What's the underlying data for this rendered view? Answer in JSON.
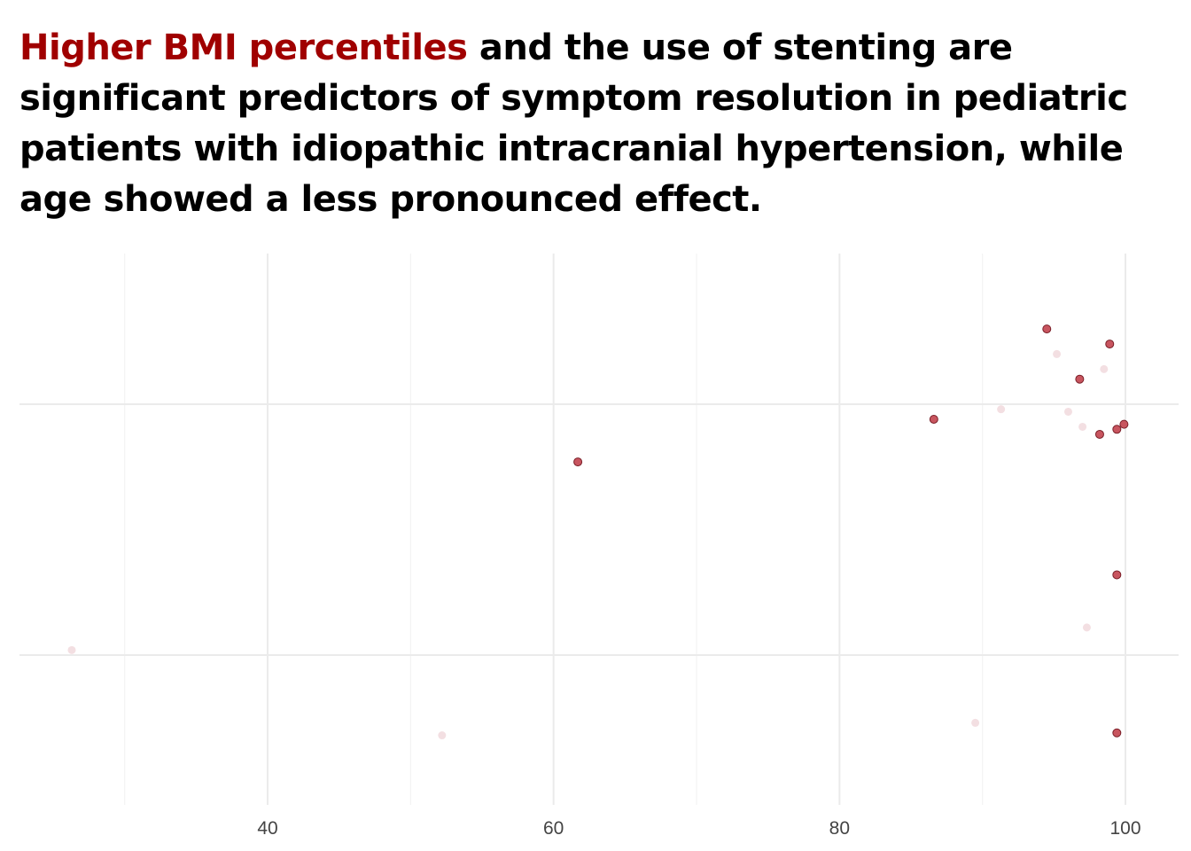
{
  "title": {
    "highlight": "Higher BMI percentiles",
    "rest": " and the use of stenting are significant predictors of symptom resolution in pediatric patients with idiopathic intracranial hypertension, while age showed a less pronounced effect."
  },
  "colors": {
    "highlight": "#a00000",
    "point_strong": "#c8555f",
    "point_strong_stroke": "#7a1f28",
    "point_faint": "#f3dfe2",
    "grid": "#ebebeb",
    "tick_text": "#444444"
  },
  "chart_data": {
    "type": "scatter",
    "title": "Higher BMI percentiles and the use of stenting are significant predictors of symptom resolution in pediatric patients with idiopathic intracranial hypertension, while age showed a less pronounced effect.",
    "xlabel": "",
    "ylabel": "",
    "x_ticks": [
      40,
      60,
      80,
      100
    ],
    "xlim": [
      22.6,
      103.6
    ],
    "y_groups": 2,
    "grid": true,
    "legend": "none",
    "series": [
      {
        "style": "strong",
        "points": [
          {
            "x": 94.5,
            "y": 1.3
          },
          {
            "x": 98.9,
            "y": 1.24
          },
          {
            "x": 96.8,
            "y": 1.1
          },
          {
            "x": 86.6,
            "y": 0.94
          },
          {
            "x": 99.9,
            "y": 0.92
          },
          {
            "x": 99.4,
            "y": 0.9
          },
          {
            "x": 98.2,
            "y": 0.88
          },
          {
            "x": 61.7,
            "y": 0.77
          },
          {
            "x": 99.4,
            "y": 0.32
          },
          {
            "x": 99.4,
            "y": -0.31
          }
        ]
      },
      {
        "style": "faint",
        "points": [
          {
            "x": 95.2,
            "y": 1.2
          },
          {
            "x": 98.5,
            "y": 1.14
          },
          {
            "x": 91.3,
            "y": 0.98
          },
          {
            "x": 96.0,
            "y": 0.97
          },
          {
            "x": 97.0,
            "y": 0.91
          },
          {
            "x": 26.3,
            "y": 0.02
          },
          {
            "x": 97.3,
            "y": 0.11
          },
          {
            "x": 89.5,
            "y": -0.27
          },
          {
            "x": 52.2,
            "y": -0.32
          }
        ]
      }
    ]
  }
}
